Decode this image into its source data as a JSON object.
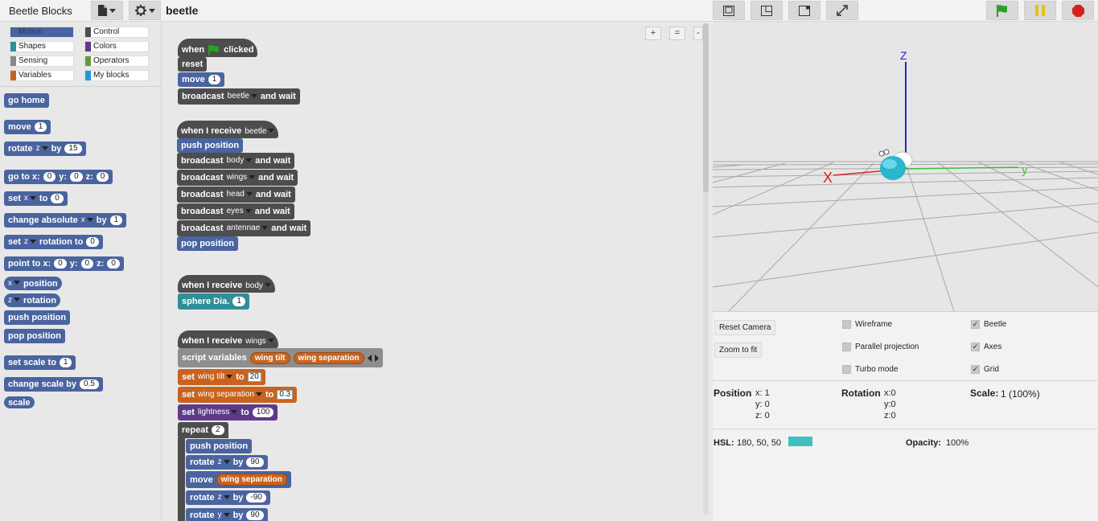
{
  "app": {
    "title": "Beetle Blocks",
    "project_name": "beetle"
  },
  "colors": {
    "motion": "#4a64a0",
    "control": "#4d4d4d",
    "shapes": "#2f8f98",
    "operators": "#629a3a",
    "colors": "#5e3a8a",
    "variables": "#c8631f",
    "sensing": "#888888",
    "my_blocks": "#229ad9",
    "flag": "#27a227",
    "pause": "#e8bf1a",
    "stop": "#d62020",
    "hsl_swatch": "#40bfbf"
  },
  "categories": [
    {
      "label": "Motion",
      "color": "#4a64a0",
      "selected": true
    },
    {
      "label": "Control",
      "color": "#4d4d4d"
    },
    {
      "label": "Shapes",
      "color": "#2f8f98"
    },
    {
      "label": "Colors",
      "color": "#5e3a8a"
    },
    {
      "label": "Sensing",
      "color": "#888888"
    },
    {
      "label": "Operators",
      "color": "#629a3a"
    },
    {
      "label": "Variables",
      "color": "#c8631f"
    },
    {
      "label": "My blocks",
      "color": "#229ad9"
    }
  ],
  "palette": {
    "go_home": "go home",
    "move": "move",
    "move_val": "1",
    "rotate": "rotate",
    "rotate_axis": "z",
    "rotate_by": "by",
    "rotate_val": "15",
    "goto": "go to x:",
    "goto_x": "0",
    "goto_y_lbl": "y:",
    "goto_y": "0",
    "goto_z_lbl": "z:",
    "goto_z": "0",
    "set": "set",
    "set_axis": "x",
    "set_to": "to",
    "set_val": "0",
    "change_abs": "change absolute",
    "change_axis": "x",
    "change_by": "by",
    "change_val": "1",
    "set_rot": "set",
    "set_rot_axis": "z",
    "set_rot_label": "rotation to",
    "set_rot_val": "0",
    "point": "point to x:",
    "point_x": "0",
    "point_y_lbl": "y:",
    "point_y": "0",
    "point_z_lbl": "z:",
    "point_z": "0",
    "pos_axis": "x",
    "position": "position",
    "rot_axis": "z",
    "rotation": "rotation",
    "push_position": "push position",
    "pop_position": "pop position",
    "set_scale": "set scale to",
    "set_scale_val": "1",
    "change_scale": "change scale by",
    "change_scale_val": "0.5",
    "scale": "scale"
  },
  "zoom_buttons": [
    "+",
    "=",
    "-"
  ],
  "script": {
    "when": "when",
    "clicked": "clicked",
    "reset": "reset",
    "move": "move",
    "move_val": "1",
    "broadcast": "broadcast",
    "and_wait": "and wait",
    "msg_beetle": "beetle",
    "when_receive": "when I receive",
    "push_position": "push position",
    "msg_body": "body",
    "msg_wings": "wings",
    "msg_head": "head",
    "msg_eyes": "eyes",
    "msg_antennae": "antennae",
    "pop_position": "pop position",
    "sphere": "sphere Dia.",
    "sphere_val": "1",
    "script_vars": "script variables",
    "var_tilt": "wing tilt",
    "var_sep": "wing separation",
    "set": "set",
    "set_tilt_var": "wing tilt",
    "to": "to",
    "set_tilt_val": "20",
    "set_sep_var": "wing separation",
    "set_sep_val": "0.3",
    "set_light": "lightness",
    "set_light_val": "100",
    "repeat": "repeat",
    "repeat_val": "2",
    "rotate": "rotate",
    "axis_z": "z",
    "axis_y": "y",
    "by": "by",
    "rot1": "90",
    "rot2": "-90",
    "rot3": "90",
    "move_var": "wing separation"
  },
  "stage": {
    "axis_x": "X",
    "axis_y": "y",
    "axis_z": "Z"
  },
  "controls": {
    "reset_camera": "Reset Camera",
    "zoom_to_fit": "Zoom to fit",
    "wireframe": "Wireframe",
    "parallel": "Parallel projection",
    "turbo": "Turbo mode",
    "beetle": "Beetle",
    "axes": "Axes",
    "grid": "Grid",
    "position_label": "Position",
    "pos_x": "x: 1",
    "pos_y": "y: 0",
    "pos_z": "z: 0",
    "rotation_label": "Rotation",
    "rot_x": "x:0",
    "rot_y": "y:0",
    "rot_z": "z:0",
    "scale_label": "Scale:",
    "scale_val": "1 (100%)",
    "hsl_label": "HSL:",
    "hsl_val": "180, 50, 50",
    "opacity_label": "Opacity:",
    "opacity_val": "100%"
  }
}
